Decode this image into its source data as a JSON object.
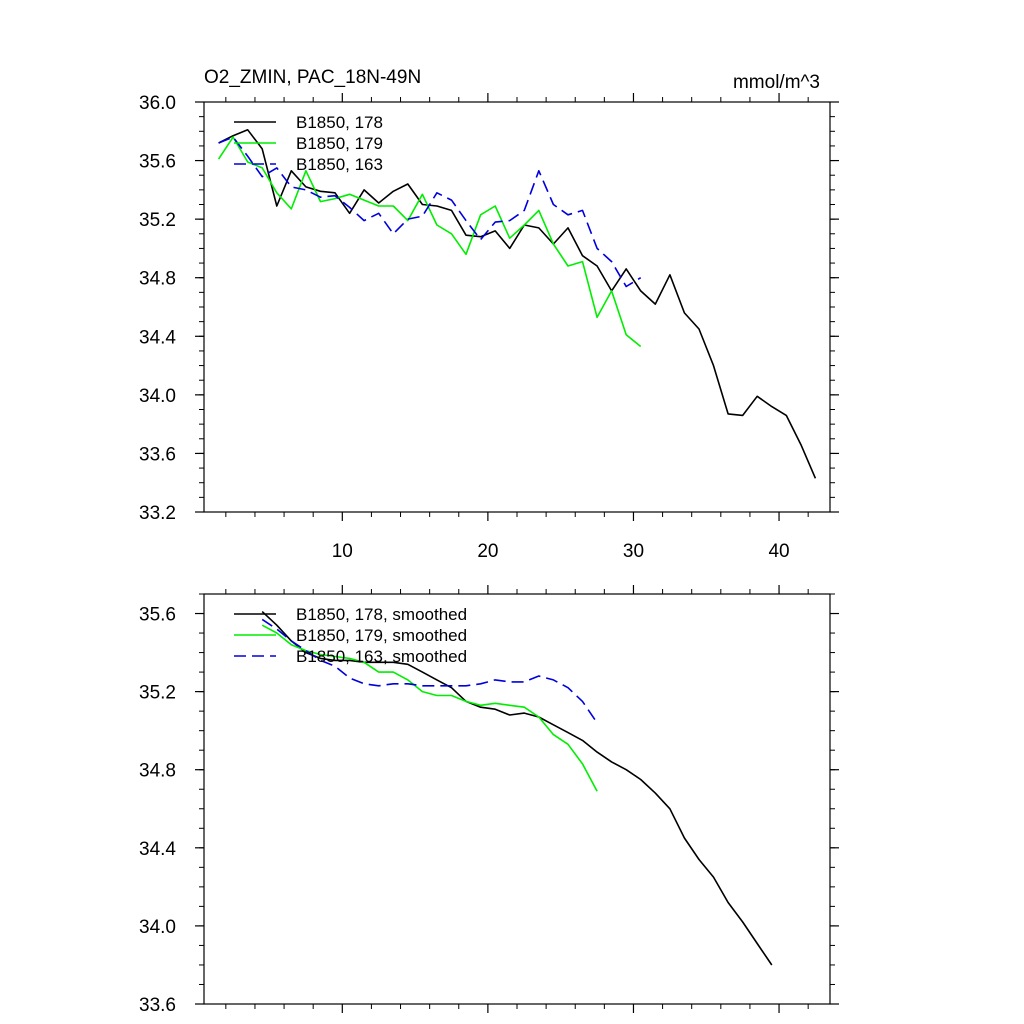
{
  "figure": {
    "title_left": "O2_ZMIN, PAC_18N-49N",
    "title_right": "mmol/m^3"
  },
  "colors": {
    "run178": "#000000",
    "run179": "#00ee00",
    "run163": "#0000dd"
  },
  "chart_data": [
    {
      "type": "line",
      "panel": "top",
      "xlim": [
        0.5,
        43.5
      ],
      "ylim": [
        33.2,
        36.0
      ],
      "yticks": [
        33.2,
        33.6,
        34.0,
        34.4,
        34.8,
        35.2,
        35.6,
        36.0
      ],
      "ytick_labels": [
        "33.2",
        "33.6",
        "34.0",
        "34.4",
        "34.8",
        "35.2",
        "35.6",
        "36.0"
      ],
      "xticks": [
        10,
        20,
        30,
        40
      ],
      "xtick_labels": [
        "10",
        "20",
        "30",
        "40"
      ],
      "legend_position": "top-left",
      "series": [
        {
          "name": "B1850, 178",
          "style": "solid",
          "color_key": "run178",
          "x": [
            1.5,
            2.5,
            3.5,
            4.5,
            5.5,
            6.5,
            7.5,
            8.5,
            9.5,
            10.5,
            11.5,
            12.5,
            13.5,
            14.5,
            15.5,
            16.5,
            17.5,
            18.5,
            19.5,
            20.5,
            21.5,
            22.5,
            23.5,
            24.5,
            25.5,
            26.5,
            27.5,
            28.5,
            29.5,
            30.5,
            31.5,
            32.5,
            33.5,
            34.5,
            35.5,
            36.5,
            37.5,
            38.5,
            39.5,
            40.5,
            41.5,
            42.5
          ],
          "y": [
            35.72,
            35.77,
            35.81,
            35.68,
            35.29,
            35.53,
            35.42,
            35.39,
            35.38,
            35.24,
            35.4,
            35.31,
            35.39,
            35.44,
            35.3,
            35.29,
            35.26,
            35.09,
            35.08,
            35.12,
            35.0,
            35.16,
            35.14,
            35.03,
            35.14,
            34.95,
            34.88,
            34.71,
            34.86,
            34.71,
            34.62,
            34.82,
            34.56,
            34.45,
            34.2,
            33.87,
            33.86,
            33.99,
            33.92,
            33.86,
            33.66,
            33.43
          ]
        },
        {
          "name": "B1850, 179",
          "style": "solid",
          "color_key": "run179",
          "x": [
            1.5,
            2.5,
            3.5,
            4.5,
            5.5,
            6.5,
            7.5,
            8.5,
            9.5,
            10.5,
            11.5,
            12.5,
            13.5,
            14.5,
            15.5,
            16.5,
            17.5,
            18.5,
            19.5,
            20.5,
            21.5,
            22.5,
            23.5,
            24.5,
            25.5,
            26.5,
            27.5,
            28.5,
            29.5,
            30.5
          ],
          "y": [
            35.61,
            35.76,
            35.59,
            35.55,
            35.38,
            35.27,
            35.53,
            35.32,
            35.34,
            35.37,
            35.33,
            35.29,
            35.29,
            35.19,
            35.37,
            35.16,
            35.1,
            34.96,
            35.23,
            35.29,
            35.07,
            35.16,
            35.26,
            35.03,
            34.88,
            34.91,
            34.53,
            34.71,
            34.41,
            34.33
          ]
        },
        {
          "name": "B1850, 163",
          "style": "dashed",
          "color_key": "run163",
          "x": [
            1.5,
            2.5,
            3.5,
            4.5,
            5.5,
            6.5,
            7.5,
            8.5,
            9.5,
            10.5,
            11.5,
            12.5,
            13.5,
            14.5,
            15.5,
            16.5,
            17.5,
            18.5,
            19.5,
            20.5,
            21.5,
            22.5,
            23.5,
            24.5,
            25.5,
            26.5,
            27.5,
            28.5,
            29.5,
            30.5
          ],
          "y": [
            35.72,
            35.76,
            35.63,
            35.49,
            35.55,
            35.42,
            35.4,
            35.35,
            35.36,
            35.28,
            35.19,
            35.24,
            35.1,
            35.2,
            35.22,
            35.38,
            35.33,
            35.19,
            35.06,
            35.18,
            35.19,
            35.26,
            35.53,
            35.3,
            35.23,
            35.26,
            35.0,
            34.91,
            34.74,
            34.8
          ]
        }
      ]
    },
    {
      "type": "line",
      "panel": "bottom",
      "xlim": [
        0.5,
        43.5
      ],
      "ylim": [
        33.6,
        35.7
      ],
      "yticks": [
        33.6,
        34.0,
        34.4,
        34.8,
        35.2,
        35.6
      ],
      "ytick_labels": [
        "33.6",
        "34.0",
        "34.4",
        "34.8",
        "35.2",
        "35.6"
      ],
      "xticks": [
        10,
        20,
        30,
        40
      ],
      "legend_position": "top-left",
      "series": [
        {
          "name": "B1850, 178, smoothed",
          "style": "solid",
          "color_key": "run178",
          "x": [
            4.5,
            5.5,
            6.5,
            7.5,
            8.5,
            9.5,
            10.5,
            11.5,
            12.5,
            13.5,
            14.5,
            15.5,
            16.5,
            17.5,
            18.5,
            19.5,
            20.5,
            21.5,
            22.5,
            23.5,
            24.5,
            25.5,
            26.5,
            27.5,
            28.5,
            29.5,
            30.5,
            31.5,
            32.5,
            33.5,
            34.5,
            35.5,
            36.5,
            37.5,
            38.5,
            39.5
          ],
          "y": [
            35.61,
            35.54,
            35.46,
            35.4,
            35.37,
            35.36,
            35.36,
            35.35,
            35.35,
            35.35,
            35.34,
            35.3,
            35.26,
            35.22,
            35.15,
            35.12,
            35.11,
            35.08,
            35.09,
            35.07,
            35.03,
            34.99,
            34.95,
            34.89,
            34.84,
            34.8,
            34.75,
            34.68,
            34.6,
            34.45,
            34.34,
            34.25,
            34.12,
            34.02,
            33.91,
            33.8
          ]
        },
        {
          "name": "B1850, 179, smoothed",
          "style": "solid",
          "color_key": "run179",
          "x": [
            4.5,
            5.5,
            6.5,
            7.5,
            8.5,
            9.5,
            10.5,
            11.5,
            12.5,
            13.5,
            14.5,
            15.5,
            16.5,
            17.5,
            18.5,
            19.5,
            20.5,
            21.5,
            22.5,
            23.5,
            24.5,
            25.5,
            26.5,
            27.5
          ],
          "y": [
            35.54,
            35.5,
            35.44,
            35.41,
            35.39,
            35.38,
            35.37,
            35.35,
            35.3,
            35.3,
            35.26,
            35.2,
            35.18,
            35.18,
            35.15,
            35.13,
            35.14,
            35.13,
            35.12,
            35.07,
            34.98,
            34.93,
            34.83,
            34.69
          ]
        },
        {
          "name": "B1850, 163, smoothed",
          "style": "dashed",
          "color_key": "run163",
          "x": [
            4.5,
            5.5,
            6.5,
            7.5,
            8.5,
            9.5,
            10.5,
            11.5,
            12.5,
            13.5,
            14.5,
            15.5,
            16.5,
            17.5,
            18.5,
            19.5,
            20.5,
            21.5,
            22.5,
            23.5,
            24.5,
            25.5,
            26.5,
            27.5
          ],
          "y": [
            35.57,
            35.52,
            35.46,
            35.41,
            35.36,
            35.33,
            35.27,
            35.24,
            35.23,
            35.24,
            35.24,
            35.23,
            35.23,
            35.23,
            35.23,
            35.24,
            35.26,
            35.25,
            35.25,
            35.28,
            35.26,
            35.22,
            35.15,
            35.04
          ]
        }
      ]
    }
  ]
}
